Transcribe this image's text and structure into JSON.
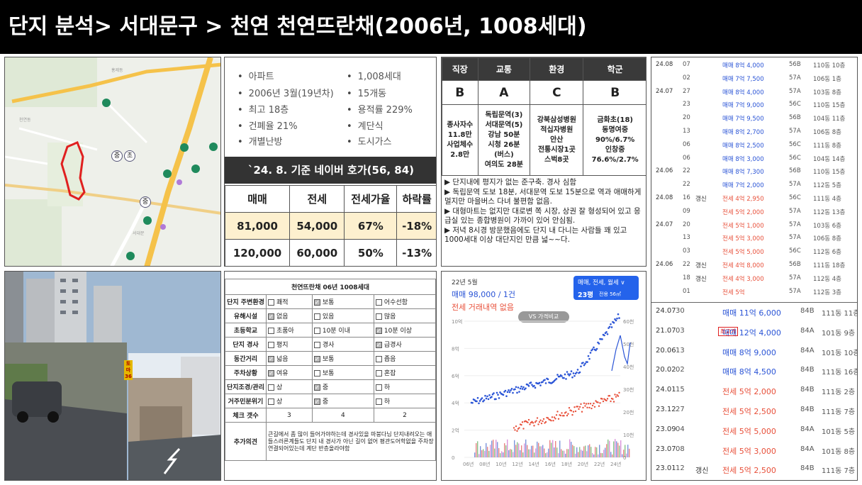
{
  "title": "단지 분석> 서대문구 > 천연 천연뜨란채(2006년, 1008세대)",
  "info": {
    "bullets_left": [
      "아파트",
      "2006년 3월(19년차)",
      "최고 18층",
      "건폐율 21%",
      "개별난방"
    ],
    "bullets_right": [
      "1,008세대",
      "15개동",
      "용적률 229%",
      "계단식",
      "도시가스"
    ],
    "naver_head": "`24. 8. 기준 네이버 호가(56, 84)",
    "headers": [
      "매매",
      "전세",
      "전세가율",
      "하락률"
    ],
    "rows": [
      [
        "81,000",
        "54,000",
        "67%",
        "-18%"
      ],
      [
        "120,000",
        "60,000",
        "50%",
        "-13%"
      ]
    ]
  },
  "grades": {
    "headers": [
      "직장",
      "교통",
      "환경",
      "학군"
    ],
    "grades": [
      "B",
      "A",
      "C",
      "B"
    ],
    "details": [
      "종사자수\n11.8만\n사업체수\n2.8만",
      "독립문역(3)\n서대문역(5)\n강남 50분\n시청 26분\n(버스)\n여의도 28분",
      "강북삼성병원\n적십자병원\n안산\n전통시장1곳\n스벅8곳",
      "금화초(18)\n동명여중\n90%/6.7%\n인창중\n76.6%/2.7%"
    ],
    "notes": [
      "▶ 단지내에 평지가 없는 준구축. 경사 심함",
      "▶ 독립문역 도보 18분, 서대문역 도보 15분으로 역과 애매하게 멀지만 마을버스 다녀 불편함 없음.",
      "▶ 대형마트는 없지만 대로변 쪽 시장, 상권 잘 형성되어 있고 응급실 있는 종합병원이 가까이 있어 안심됨.",
      "▶ 저녁 8시경 방문했음에도 단지 내 다니는 사람들 꽤 있고 1000세대 이상 대단지인 만큼 넓~~다."
    ]
  },
  "map": {
    "badge1": "중",
    "badge2": "초",
    "badge3": "중"
  },
  "trades56": [
    [
      "24.08",
      "07",
      "",
      "매매 8억 4,000",
      "56B",
      "110동 10층"
    ],
    [
      "",
      "02",
      "",
      "매매 7억 7,500",
      "57A",
      "106동 1층"
    ],
    [
      "24.07",
      "27",
      "",
      "매매 8억 4,000",
      "57A",
      "103동 8층"
    ],
    [
      "",
      "23",
      "",
      "매매 7억 9,000",
      "56C",
      "110동 15층"
    ],
    [
      "",
      "20",
      "",
      "매매 7억 9,500",
      "56B",
      "104동 11층"
    ],
    [
      "",
      "13",
      "",
      "매매 8억 2,700",
      "57A",
      "106동 8층"
    ],
    [
      "",
      "06",
      "",
      "매매 8억 2,500",
      "56C",
      "111동 8층"
    ],
    [
      "",
      "06",
      "",
      "매매 8억 3,000",
      "56C",
      "104동 14층"
    ],
    [
      "24.06",
      "22",
      "",
      "매매 8억 7,300",
      "56B",
      "110동 15층"
    ],
    [
      "",
      "22",
      "",
      "매매 7억 2,000",
      "57A",
      "112동 5층"
    ],
    [
      "24.08",
      "16",
      "갱신",
      "전세 4억 2,950",
      "56C",
      "111동 4층"
    ],
    [
      "",
      "09",
      "",
      "전세 5억 2,000",
      "57A",
      "112동 13층"
    ],
    [
      "24.07",
      "20",
      "",
      "전세 5억 1,000",
      "57A",
      "103동 6층"
    ],
    [
      "",
      "13",
      "",
      "전세 5억 3,000",
      "57A",
      "106동 8층"
    ],
    [
      "",
      "03",
      "",
      "전세 5억 5,000",
      "56C",
      "112동 6층"
    ],
    [
      "24.06",
      "22",
      "갱신",
      "전세 4억 8,000",
      "56B",
      "111동 18층"
    ],
    [
      "",
      "18",
      "갱신",
      "전세 4억 3,000",
      "57A",
      "112동 4층"
    ],
    [
      "",
      "01",
      "",
      "전세 5억",
      "57A",
      "112동 3층"
    ]
  ],
  "trades84": [
    [
      "24.07",
      "30",
      "",
      "매매 11억 6,000",
      "84B",
      "111동 11층"
    ],
    [
      "21.07",
      "03",
      "",
      "매매 12억 4,000",
      "84A",
      "101동 9층"
    ],
    [
      "20.06",
      "13",
      "",
      "매매 8억 9,000",
      "84A",
      "101동 10층"
    ],
    [
      "20.02",
      "02",
      "",
      "매매 8억 4,500",
      "84B",
      "111동 16층"
    ],
    [
      "24.01",
      "15",
      "",
      "전세 5억 2,000",
      "84B",
      "111동 2층"
    ],
    [
      "23.12",
      "27",
      "",
      "전세 5억 2,500",
      "84B",
      "111동 7층"
    ],
    [
      "23.09",
      "04",
      "",
      "전세 5억 5,000",
      "84A",
      "101동 5층"
    ],
    [
      "23.07",
      "08",
      "",
      "전세 5억 3,000",
      "84A",
      "101동 8층"
    ],
    [
      "23.01",
      "12",
      "갱신",
      "전세 5억 2,500",
      "84B",
      "111동 7층"
    ]
  ],
  "highest_badge": "최고가",
  "photo": {
    "sign": "토마\n36"
  },
  "checklist": {
    "title": "천연뜨란채 06년 1008세대",
    "rows": [
      {
        "label": "단지 주변환경",
        "opts": [
          "쾌적",
          "보통",
          "어수선함"
        ],
        "sel": 1
      },
      {
        "label": "유해시설",
        "opts": [
          "없음",
          "있음",
          "많음"
        ],
        "sel": 0
      },
      {
        "label": "초등학교",
        "opts": [
          "초품아",
          "10분 이내",
          "10분 이상"
        ],
        "sel": 2
      },
      {
        "label": "단지 경사",
        "opts": [
          "평지",
          "경사",
          "급경사"
        ],
        "sel": 2
      },
      {
        "label": "동간거리",
        "opts": [
          "넓음",
          "보통",
          "좁음"
        ],
        "sel": [
          0,
          1
        ]
      },
      {
        "label": "주차상황",
        "opts": [
          "여유",
          "보통",
          "혼잡"
        ],
        "sel": 0
      },
      {
        "label": "단지조경/관리",
        "opts": [
          "상",
          "중",
          "하"
        ],
        "sel": 1
      },
      {
        "label": "거주민분위기",
        "opts": [
          "상",
          "중",
          "하"
        ],
        "sel": 1
      }
    ],
    "count_label": "체크 갯수",
    "counts": [
      "3",
      "4",
      "2"
    ],
    "extra_label": "추가의견",
    "extra": "큰길에서 좀 많이 들어가야하는데 경사있을 마붕다님 단지내려오는 애들스러른계들도 단지 내 경사가 아닌 길이 없어 평관도어학없을 주차장연결되어있는데 계단 반층올라야함"
  },
  "price": {
    "date": "22년 5월",
    "sale": "매매 98,000 / 1건",
    "jeonse": "전세 거래내역 없음",
    "filter": "매매, 전세, 월세 ∨",
    "area": "23평",
    "area_sub": "전용 56㎡",
    "compare": "VS 가격비교",
    "y_left": [
      "10억",
      "8억",
      "6억",
      "4억",
      "2억",
      "0"
    ],
    "y_right": [
      "60천",
      "50천",
      "40천",
      "30천",
      "20천",
      "10천",
      "0"
    ],
    "x": [
      "06년",
      "08년",
      "10년",
      "12년",
      "14년",
      "16년",
      "18년",
      "20년",
      "22년",
      "24년"
    ]
  },
  "colors": {
    "sale": "#2a54d6",
    "jeonse": "#e8503a",
    "black": "#000"
  }
}
